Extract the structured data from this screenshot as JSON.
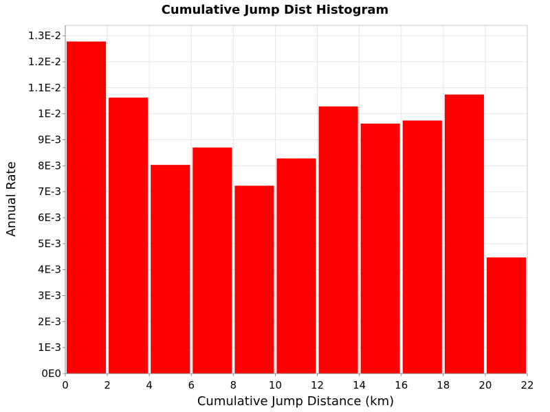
{
  "chart_data": {
    "type": "bar",
    "title": "Cumulative Jump Dist Histogram",
    "xlabel": "Cumulative Jump Distance (km)",
    "ylabel": "Annual Rate",
    "xlim": [
      0,
      22
    ],
    "ylim": [
      0,
      0.0134
    ],
    "x_ticks": [
      0,
      2,
      4,
      6,
      8,
      10,
      12,
      14,
      16,
      18,
      20,
      22
    ],
    "x_tick_labels": [
      "0",
      "2",
      "4",
      "6",
      "8",
      "10",
      "12",
      "14",
      "16",
      "18",
      "20",
      "22"
    ],
    "y_ticks": [
      0,
      0.001,
      0.002,
      0.003,
      0.004,
      0.005,
      0.006,
      0.007,
      0.008,
      0.009,
      0.01,
      0.011,
      0.012,
      0.013
    ],
    "y_tick_labels": [
      "0E0",
      "1E-3",
      "2E-3",
      "3E-3",
      "4E-3",
      "5E-3",
      "6E-3",
      "7E-3",
      "8E-3",
      "9E-3",
      "1E-2",
      "1.1E-2",
      "1.2E-2",
      "1.3E-2"
    ],
    "bin_width": 2,
    "bins": [
      {
        "x_start": 0,
        "value": 0.01278
      },
      {
        "x_start": 2,
        "value": 0.01062
      },
      {
        "x_start": 4,
        "value": 0.00803
      },
      {
        "x_start": 6,
        "value": 0.0087
      },
      {
        "x_start": 8,
        "value": 0.00723
      },
      {
        "x_start": 10,
        "value": 0.00828
      },
      {
        "x_start": 12,
        "value": 0.01028
      },
      {
        "x_start": 14,
        "value": 0.00962
      },
      {
        "x_start": 16,
        "value": 0.00974
      },
      {
        "x_start": 18,
        "value": 0.01074
      },
      {
        "x_start": 20,
        "value": 0.00447
      }
    ],
    "bar_color": "#ff0000",
    "grid": true,
    "legend": "none"
  }
}
